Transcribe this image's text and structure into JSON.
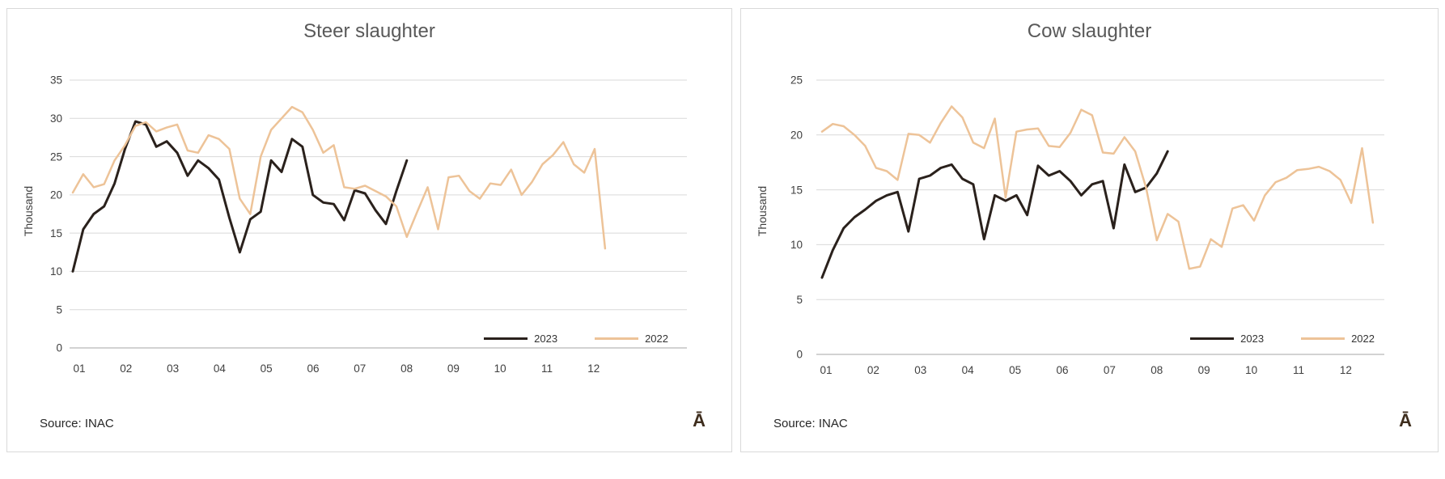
{
  "page": {
    "corner_symbol": "Ā",
    "colors": {
      "panel_border": "#d9d9d9",
      "gridline": "#d9d9d9",
      "axis_line": "#b8b8b8",
      "title_text": "#595959",
      "tick_text": "#404040",
      "source_text": "#262626",
      "corner_symbol": "#3e2d1d",
      "series_2023": "#2a211c",
      "series_2022": "#edc398"
    }
  },
  "chart_data": [
    {
      "type": "line",
      "title": "Steer slaughter",
      "ylabel": "Thousand",
      "xlabel": "",
      "source": "Source: INAC",
      "ylim": [
        0,
        35
      ],
      "y_ticks": [
        0,
        5,
        10,
        15,
        20,
        25,
        30,
        35
      ],
      "x_tick_labels": [
        "01",
        "02",
        "03",
        "04",
        "05",
        "06",
        "07",
        "08",
        "09",
        "10",
        "11",
        "12"
      ],
      "x_unit": "week-of-year",
      "grid": true,
      "legend_position": "inside-bottom-right",
      "series": [
        {
          "name": "2023",
          "color": "#2a211c",
          "stroke_width": 3,
          "values": [
            10,
            15.5,
            17.5,
            18.5,
            21.5,
            26,
            29.6,
            29.2,
            26.3,
            27,
            25.5,
            22.5,
            24.5,
            23.5,
            22,
            17,
            12.5,
            16.8,
            17.8,
            24.5,
            23,
            27.3,
            26.3,
            20,
            19,
            18.8,
            16.7,
            20.6,
            20.2,
            18,
            16.2,
            20.5,
            24.5
          ]
        },
        {
          "name": "2022",
          "color": "#edc398",
          "stroke_width": 2.5,
          "values": [
            20.3,
            22.7,
            21,
            21.4,
            24.5,
            26.5,
            29,
            29.5,
            28.3,
            28.8,
            29.2,
            25.8,
            25.5,
            27.8,
            27.3,
            26,
            19.5,
            17.5,
            25,
            28.5,
            30,
            31.5,
            30.8,
            28.5,
            25.5,
            26.5,
            21,
            20.8,
            21.2,
            20.5,
            19.8,
            18.5,
            14.5,
            17.8,
            21,
            15.5,
            22.3,
            22.5,
            20.5,
            19.5,
            21.5,
            21.3,
            23.3,
            20,
            21.7,
            24,
            25.2,
            26.9,
            24,
            22.9,
            26,
            13
          ]
        }
      ]
    },
    {
      "type": "line",
      "title": "Cow slaughter",
      "ylabel": "Thousand",
      "xlabel": "",
      "source": "Source: INAC",
      "ylim": [
        0,
        25
      ],
      "y_ticks": [
        0,
        5,
        10,
        15,
        20,
        25
      ],
      "x_tick_labels": [
        "01",
        "02",
        "03",
        "04",
        "05",
        "06",
        "07",
        "08",
        "09",
        "10",
        "11",
        "12"
      ],
      "x_unit": "week-of-year",
      "grid": true,
      "legend_position": "inside-bottom-right",
      "series": [
        {
          "name": "2023",
          "color": "#2a211c",
          "stroke_width": 3,
          "values": [
            7,
            9.5,
            11.5,
            12.5,
            13.2,
            14,
            14.5,
            14.8,
            11.2,
            16,
            16.3,
            17,
            17.3,
            16,
            15.5,
            10.5,
            14.5,
            14,
            14.5,
            12.7,
            17.2,
            16.3,
            16.7,
            15.8,
            14.5,
            15.5,
            15.8,
            11.5,
            17.3,
            14.8,
            15.2,
            16.5,
            18.5
          ]
        },
        {
          "name": "2022",
          "color": "#edc398",
          "stroke_width": 2.5,
          "values": [
            20.3,
            21,
            20.8,
            20,
            19,
            17,
            16.7,
            15.9,
            20.1,
            20,
            19.3,
            21.1,
            22.6,
            21.6,
            19.3,
            18.8,
            21.5,
            14.3,
            20.3,
            20.5,
            20.6,
            19,
            18.9,
            20.2,
            22.3,
            21.8,
            18.4,
            18.3,
            19.8,
            18.5,
            15.2,
            10.4,
            12.8,
            12.1,
            7.8,
            8,
            10.5,
            9.8,
            13.3,
            13.6,
            12.2,
            14.5,
            15.7,
            16.1,
            16.8,
            16.9,
            17.1,
            16.7,
            15.9,
            13.8,
            18.8,
            12
          ]
        }
      ]
    }
  ]
}
